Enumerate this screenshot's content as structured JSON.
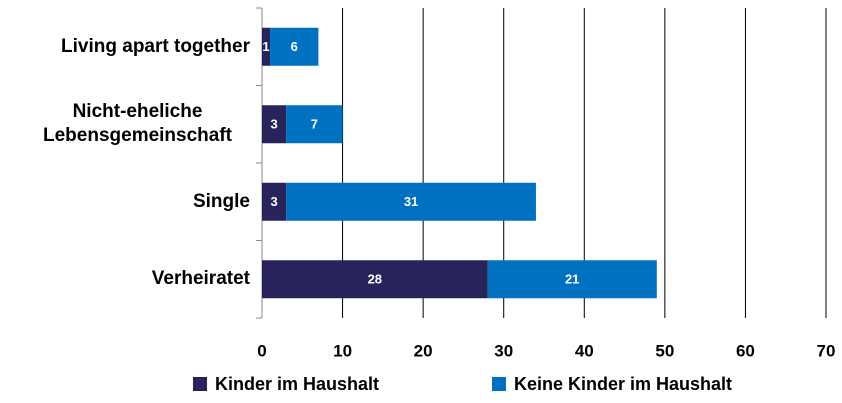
{
  "chart_data": {
    "type": "stacked-bar-horizontal",
    "categories": [
      "Living apart together",
      "Nicht-eheliche Lebensgemeinschaft",
      "Single",
      "Verheiratet"
    ],
    "series": [
      {
        "name": "Kinder im Haushalt",
        "color": "#29235c",
        "values": [
          1,
          3,
          3,
          28
        ]
      },
      {
        "name": "Keine Kinder im Haushalt",
        "color": "#0070c0",
        "values": [
          6,
          7,
          31,
          21
        ]
      }
    ],
    "xlim": [
      0,
      70
    ],
    "xticks": [
      0,
      10,
      20,
      30,
      40,
      50,
      60,
      70
    ],
    "grid": true,
    "legend": "bottom"
  }
}
